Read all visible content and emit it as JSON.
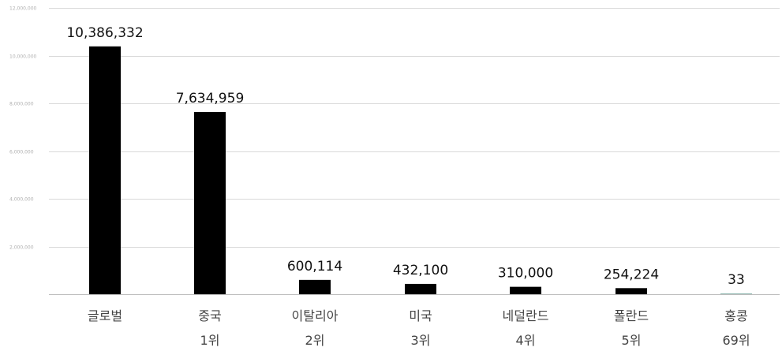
{
  "chart_data": {
    "type": "bar",
    "categories": [
      "글로벌",
      "중국",
      "이탈리아",
      "미국",
      "네덜란드",
      "폴란드",
      "홍콩"
    ],
    "ranks": [
      "",
      "1위",
      "2위",
      "3위",
      "4위",
      "5위",
      "69위"
    ],
    "values": [
      10386332,
      7634959,
      600114,
      432100,
      310000,
      254224,
      33
    ],
    "value_labels": [
      "10,386,332",
      "7,634,959",
      "600,114",
      "432,100",
      "310,000",
      "254,224",
      "33"
    ],
    "ylim": [
      0,
      12000000
    ],
    "yticks": [
      0,
      2000000,
      4000000,
      6000000,
      8000000,
      10000000,
      12000000
    ],
    "ytick_labels": [
      "",
      "2,000,000",
      "4,000,000",
      "6,000,000",
      "8,000,000",
      "10,000,000",
      "12,000,000"
    ],
    "grid": true,
    "bar_color": "#000000",
    "grid_color": "#d9d9d9"
  }
}
